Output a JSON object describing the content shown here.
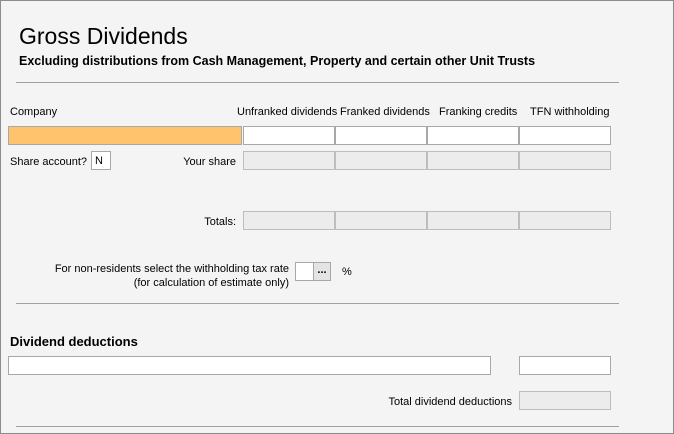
{
  "header": {
    "title": "Gross Dividends",
    "subtitle": "Excluding distributions from Cash Management, Property and certain other Unit Trusts"
  },
  "columns": [
    "Company",
    "Unfranked dividends",
    "Franked dividends",
    "Franking credits",
    "TFN withholding"
  ],
  "share_account": {
    "label": "Share account?",
    "value": "N"
  },
  "your_share_label": "Your share",
  "totals_label": "Totals:",
  "non_resident": {
    "lines": [
      "For non-residents select the withholding tax rate",
      "(for calculation of estimate only)"
    ],
    "button": "...",
    "unit": "%"
  },
  "deductions": {
    "title": "Dividend deductions",
    "total_label": "Total dividend deductions"
  }
}
